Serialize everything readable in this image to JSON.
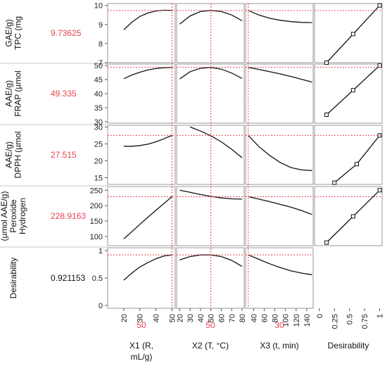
{
  "chart_data": {
    "type": "line",
    "title": "",
    "factors": [
      {
        "name": "X1",
        "label_lines": [
          "X1 (R,",
          "mL/g)"
        ],
        "current": "50",
        "range": [
          10,
          52
        ],
        "ticks": [
          20,
          30,
          40,
          50
        ],
        "setting": 50
      },
      {
        "name": "X2",
        "label_lines": [
          "X2 (T, °C)"
        ],
        "current": "50",
        "range": [
          17,
          82
        ],
        "ticks": [
          20,
          30,
          40,
          50,
          60,
          70,
          80
        ],
        "setting": 50
      },
      {
        "name": "X3",
        "label_lines": [
          "X3 (t, min)"
        ],
        "current": "30",
        "range": [
          25,
          152
        ],
        "ticks": [
          40,
          60,
          80,
          100,
          120,
          140
        ],
        "setting": 30
      },
      {
        "name": "Desirability",
        "label_lines": [
          "Desirability"
        ],
        "range": [
          -0.08,
          1.04
        ],
        "ticks": [
          0,
          0.25,
          0.5,
          0.75,
          1
        ],
        "tick_labels": [
          "0",
          "0.25",
          "0.5",
          "0.75",
          "1"
        ]
      }
    ],
    "responses": [
      {
        "name": "TPC",
        "label_lines": [
          "TPC (mg",
          "GAE/g)"
        ],
        "current": "9.73625",
        "ylim": [
          7,
          10.1
        ],
        "yticks": [
          7,
          8,
          9,
          10
        ],
        "curves": [
          {
            "factor": "X1",
            "x": [
              20,
              25,
              30,
              35,
              40,
              45,
              50
            ],
            "y": [
              8.72,
              9.12,
              9.42,
              9.6,
              9.71,
              9.75,
              9.74
            ]
          },
          {
            "factor": "X2",
            "x": [
              20,
              30,
              40,
              50,
              60,
              70,
              80
            ],
            "y": [
              9.02,
              9.45,
              9.68,
              9.74,
              9.68,
              9.5,
              9.2
            ]
          },
          {
            "factor": "X3",
            "x": [
              30,
              50,
              70,
              90,
              110,
              130,
              150
            ],
            "y": [
              9.74,
              9.5,
              9.33,
              9.22,
              9.15,
              9.11,
              9.1
            ]
          },
          {
            "factor": "Desirability",
            "x": [
              0.12,
              0.56,
              1.0
            ],
            "y": [
              7.0,
              8.5,
              10.0
            ],
            "markers": true
          }
        ]
      },
      {
        "name": "FRAP",
        "label_lines": [
          "FRAP (µmol",
          "AAE/g)"
        ],
        "current": "49.335",
        "ylim": [
          29.5,
          50.5
        ],
        "yticks": [
          30,
          35,
          40,
          45,
          50
        ],
        "curves": [
          {
            "factor": "X1",
            "x": [
              20,
              25,
              30,
              35,
              40,
              45,
              50
            ],
            "y": [
              45.3,
              46.6,
              47.6,
              48.4,
              48.9,
              49.2,
              49.3
            ]
          },
          {
            "factor": "X2",
            "x": [
              20,
              30,
              40,
              50,
              60,
              70,
              80
            ],
            "y": [
              45.2,
              47.8,
              49.0,
              49.3,
              48.7,
              47.3,
              45.4
            ]
          },
          {
            "factor": "X3",
            "x": [
              30,
              50,
              70,
              90,
              110,
              130,
              150
            ],
            "y": [
              49.3,
              48.6,
              47.8,
              47.0,
              46.1,
              45.1,
              44.1
            ]
          },
          {
            "factor": "Desirability",
            "x": [
              0.12,
              0.56,
              1.0
            ],
            "y": [
              32.5,
              41.2,
              50.0
            ],
            "markers": true
          }
        ]
      },
      {
        "name": "DPPH",
        "label_lines": [
          "DPPH (µmol",
          "AAE/g)"
        ],
        "current": "27.515",
        "ylim": [
          13,
          30.5
        ],
        "yticks": [
          15,
          20,
          25,
          30
        ],
        "curves": [
          {
            "factor": "X1",
            "x": [
              20,
              25,
              30,
              35,
              40,
              45,
              50
            ],
            "y": [
              24.3,
              24.3,
              24.5,
              24.9,
              25.6,
              26.5,
              27.5
            ]
          },
          {
            "factor": "X2",
            "x": [
              30,
              40,
              50,
              60,
              70,
              80
            ],
            "y": [
              30.0,
              28.8,
              27.4,
              25.6,
              23.4,
              20.9
            ]
          },
          {
            "factor": "X3",
            "x": [
              30,
              50,
              70,
              90,
              110,
              130,
              150
            ],
            "y": [
              27.5,
              24.2,
              21.6,
              19.5,
              18.0,
              17.3,
              17.1
            ]
          },
          {
            "factor": "Desirability",
            "x": [
              0.25,
              0.62,
              1.0
            ],
            "y": [
              13.5,
              19.0,
              27.5
            ],
            "markers": true
          }
        ]
      },
      {
        "name": "Hydrogen Peroxide",
        "label_lines": [
          "Hydrogen",
          "Peroxide",
          "(µmol AAE/g)"
        ],
        "current": "228.9163",
        "ylim": [
          70,
          262
        ],
        "yticks": [
          100,
          150,
          200,
          250
        ],
        "curves": [
          {
            "factor": "X1",
            "x": [
              20,
              25,
              30,
              35,
              40,
              45,
              50
            ],
            "y": [
              92,
              115,
              139,
              162,
              185,
              207,
              229
            ]
          },
          {
            "factor": "X2",
            "x": [
              20,
              30,
              40,
              50,
              60,
              70,
              80
            ],
            "y": [
              250,
              243,
              236,
              230,
              225,
              222,
              221
            ]
          },
          {
            "factor": "X3",
            "x": [
              30,
              50,
              70,
              90,
              110,
              130,
              150
            ],
            "y": [
              229,
              221,
              213,
              204,
              195,
              184,
              171
            ]
          },
          {
            "factor": "Desirability",
            "x": [
              0.12,
              0.56,
              1.0
            ],
            "y": [
              80,
              165,
              250
            ],
            "markers": true
          }
        ]
      },
      {
        "name": "Desirability",
        "label_lines": [
          "Desirability"
        ],
        "current": "0.921153",
        "current_color": "black",
        "ylim": [
          -0.05,
          1.05
        ],
        "yticks": [
          0,
          0.5,
          1
        ],
        "curves": [
          {
            "factor": "X1",
            "x": [
              20,
              25,
              30,
              35,
              40,
              45,
              50
            ],
            "y": [
              0.46,
              0.59,
              0.7,
              0.78,
              0.85,
              0.9,
              0.92
            ]
          },
          {
            "factor": "X2",
            "x": [
              20,
              30,
              40,
              50,
              60,
              70,
              80
            ],
            "y": [
              0.83,
              0.89,
              0.92,
              0.92,
              0.89,
              0.82,
              0.71
            ]
          },
          {
            "factor": "X3",
            "x": [
              30,
              50,
              70,
              90,
              110,
              130,
              150
            ],
            "y": [
              0.92,
              0.84,
              0.76,
              0.69,
              0.63,
              0.59,
              0.56
            ]
          }
        ]
      }
    ],
    "reference_line_color": "#e8434f",
    "curve_color": "#111111",
    "grid": false,
    "legend": "none"
  }
}
